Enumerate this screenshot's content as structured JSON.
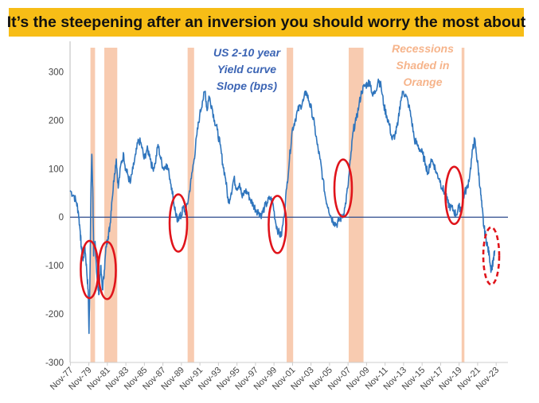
{
  "banner": {
    "title": "It’s the steepening after an inversion you should worry the most about",
    "background": "#f7bd16"
  },
  "chart_data": {
    "type": "line",
    "title": "It’s the steepening after an inversion you should worry the most about",
    "xlabel": "",
    "ylabel": "",
    "ylim": [
      -300,
      350
    ],
    "yticks": [
      -300,
      -200,
      -100,
      0,
      100,
      200,
      300
    ],
    "xticks": [
      "Nov-77",
      "Nov-79",
      "Nov-81",
      "Nov-83",
      "Nov-85",
      "Nov-87",
      "Nov-89",
      "Nov-91",
      "Nov-93",
      "Nov-95",
      "Nov-97",
      "Nov-99",
      "Nov-01",
      "Nov-03",
      "Nov-05",
      "Nov-07",
      "Nov-09",
      "Nov-11",
      "Nov-13",
      "Nov-15",
      "Nov-17",
      "Nov-19",
      "Nov-21",
      "Nov-23"
    ],
    "grid": false,
    "legend": "none",
    "annotations": {
      "series_label": [
        "US 2-10 year",
        "Yield curve",
        "Slope (bps)"
      ],
      "recession_label": [
        "Recessions",
        "Shaded in",
        "Orange"
      ]
    },
    "colors": {
      "line": "#2f75bd",
      "recession": "#f8cbb0",
      "circle": "#e0141b",
      "zero_line": "#2b4a8b",
      "annotation_blue": "#3b64b4",
      "annotation_orange": "#f6b48b"
    },
    "recessions": [
      {
        "start": 1980.0,
        "end": 1980.5
      },
      {
        "start": 1981.5,
        "end": 1982.9
      },
      {
        "start": 1990.5,
        "end": 1991.2
      },
      {
        "start": 2001.2,
        "end": 2001.9
      },
      {
        "start": 2007.9,
        "end": 2009.5
      },
      {
        "start": 2020.1,
        "end": 2020.4
      }
    ],
    "highlight_circles": [
      {
        "x": 1979.9,
        "y": -108,
        "style": "solid"
      },
      {
        "x": 1981.8,
        "y": -110,
        "style": "solid"
      },
      {
        "x": 1989.5,
        "y": -12,
        "style": "solid"
      },
      {
        "x": 2000.2,
        "y": -15,
        "style": "solid"
      },
      {
        "x": 2007.3,
        "y": 60,
        "style": "solid"
      },
      {
        "x": 2019.3,
        "y": 45,
        "style": "solid"
      },
      {
        "x": 2023.3,
        "y": -80,
        "style": "dashed"
      }
    ],
    "series": [
      {
        "points": [
          [
            1977.8,
            55
          ],
          [
            1978.2,
            45
          ],
          [
            1978.5,
            30
          ],
          [
            1978.7,
            10
          ],
          [
            1978.9,
            -30
          ],
          [
            1979.0,
            -60
          ],
          [
            1979.2,
            -90
          ],
          [
            1979.4,
            -60
          ],
          [
            1979.6,
            -110
          ],
          [
            1979.75,
            -150
          ],
          [
            1979.85,
            -240
          ],
          [
            1979.95,
            -120
          ],
          [
            1980.05,
            50
          ],
          [
            1980.15,
            130
          ],
          [
            1980.25,
            60
          ],
          [
            1980.35,
            -80
          ],
          [
            1980.5,
            -50
          ],
          [
            1980.7,
            -120
          ],
          [
            1980.9,
            -160
          ],
          [
            1981.1,
            -100
          ],
          [
            1981.3,
            -150
          ],
          [
            1981.5,
            -110
          ],
          [
            1981.7,
            -60
          ],
          [
            1981.9,
            -40
          ],
          [
            1982.1,
            -20
          ],
          [
            1982.3,
            30
          ],
          [
            1982.6,
            90
          ],
          [
            1982.8,
            120
          ],
          [
            1983.0,
            60
          ],
          [
            1983.3,
            110
          ],
          [
            1983.6,
            130
          ],
          [
            1983.8,
            100
          ],
          [
            1984.0,
            90
          ],
          [
            1984.3,
            70
          ],
          [
            1984.6,
            100
          ],
          [
            1984.9,
            130
          ],
          [
            1985.2,
            160
          ],
          [
            1985.5,
            150
          ],
          [
            1985.8,
            120
          ],
          [
            1986.1,
            140
          ],
          [
            1986.4,
            130
          ],
          [
            1986.7,
            100
          ],
          [
            1987.0,
            110
          ],
          [
            1987.3,
            150
          ],
          [
            1987.6,
            120
          ],
          [
            1987.9,
            100
          ],
          [
            1988.2,
            110
          ],
          [
            1988.5,
            90
          ],
          [
            1988.8,
            60
          ],
          [
            1989.0,
            30
          ],
          [
            1989.2,
            10
          ],
          [
            1989.4,
            -10
          ],
          [
            1989.6,
            5
          ],
          [
            1989.8,
            0
          ],
          [
            1990.0,
            20
          ],
          [
            1990.3,
            10
          ],
          [
            1990.6,
            40
          ],
          [
            1990.9,
            80
          ],
          [
            1991.2,
            120
          ],
          [
            1991.5,
            170
          ],
          [
            1991.8,
            210
          ],
          [
            1992.1,
            240
          ],
          [
            1992.4,
            260
          ],
          [
            1992.6,
            220
          ],
          [
            1992.8,
            250
          ],
          [
            1993.1,
            230
          ],
          [
            1993.4,
            200
          ],
          [
            1993.7,
            180
          ],
          [
            1994.0,
            150
          ],
          [
            1994.3,
            110
          ],
          [
            1994.6,
            80
          ],
          [
            1994.9,
            30
          ],
          [
            1995.2,
            50
          ],
          [
            1995.5,
            80
          ],
          [
            1995.8,
            60
          ],
          [
            1996.1,
            70
          ],
          [
            1996.4,
            40
          ],
          [
            1996.7,
            55
          ],
          [
            1997.0,
            50
          ],
          [
            1997.3,
            35
          ],
          [
            1997.6,
            25
          ],
          [
            1997.9,
            15
          ],
          [
            1998.2,
            10
          ],
          [
            1998.5,
            5
          ],
          [
            1998.8,
            20
          ],
          [
            1999.1,
            30
          ],
          [
            1999.4,
            40
          ],
          [
            1999.7,
            30
          ],
          [
            2000.0,
            -10
          ],
          [
            2000.3,
            -30
          ],
          [
            2000.6,
            -40
          ],
          [
            2000.9,
            0
          ],
          [
            2001.2,
            60
          ],
          [
            2001.5,
            120
          ],
          [
            2001.8,
            180
          ],
          [
            2002.1,
            200
          ],
          [
            2002.4,
            220
          ],
          [
            2002.7,
            230
          ],
          [
            2003.0,
            240
          ],
          [
            2003.3,
            260
          ],
          [
            2003.6,
            240
          ],
          [
            2003.9,
            220
          ],
          [
            2004.2,
            190
          ],
          [
            2004.5,
            150
          ],
          [
            2004.8,
            120
          ],
          [
            2005.1,
            80
          ],
          [
            2005.4,
            40
          ],
          [
            2005.7,
            20
          ],
          [
            2006.0,
            0
          ],
          [
            2006.3,
            -10
          ],
          [
            2006.6,
            -15
          ],
          [
            2006.9,
            -5
          ],
          [
            2007.2,
            0
          ],
          [
            2007.5,
            20
          ],
          [
            2007.8,
            60
          ],
          [
            2008.1,
            120
          ],
          [
            2008.4,
            180
          ],
          [
            2008.7,
            200
          ],
          [
            2009.0,
            230
          ],
          [
            2009.3,
            260
          ],
          [
            2009.6,
            270
          ],
          [
            2009.9,
            275
          ],
          [
            2010.2,
            280
          ],
          [
            2010.5,
            250
          ],
          [
            2010.8,
            260
          ],
          [
            2011.1,
            285
          ],
          [
            2011.4,
            270
          ],
          [
            2011.7,
            230
          ],
          [
            2012.0,
            210
          ],
          [
            2012.3,
            190
          ],
          [
            2012.6,
            160
          ],
          [
            2012.9,
            170
          ],
          [
            2013.2,
            190
          ],
          [
            2013.5,
            240
          ],
          [
            2013.8,
            260
          ],
          [
            2014.1,
            250
          ],
          [
            2014.4,
            230
          ],
          [
            2014.7,
            200
          ],
          [
            2015.0,
            160
          ],
          [
            2015.3,
            150
          ],
          [
            2015.6,
            140
          ],
          [
            2015.9,
            130
          ],
          [
            2016.2,
            110
          ],
          [
            2016.5,
            90
          ],
          [
            2016.8,
            120
          ],
          [
            2017.1,
            110
          ],
          [
            2017.4,
            90
          ],
          [
            2017.7,
            80
          ],
          [
            2018.0,
            60
          ],
          [
            2018.3,
            50
          ],
          [
            2018.6,
            30
          ],
          [
            2018.9,
            20
          ],
          [
            2019.2,
            15
          ],
          [
            2019.5,
            5
          ],
          [
            2019.8,
            20
          ],
          [
            2020.1,
            20
          ],
          [
            2020.4,
            50
          ],
          [
            2020.7,
            60
          ],
          [
            2021.0,
            90
          ],
          [
            2021.3,
            140
          ],
          [
            2021.5,
            160
          ],
          [
            2021.7,
            130
          ],
          [
            2021.9,
            100
          ],
          [
            2022.1,
            60
          ],
          [
            2022.3,
            20
          ],
          [
            2022.5,
            -20
          ],
          [
            2022.7,
            -40
          ],
          [
            2022.9,
            -60
          ],
          [
            2023.1,
            -80
          ],
          [
            2023.3,
            -110
          ],
          [
            2023.5,
            -90
          ],
          [
            2023.7,
            -70
          ]
        ]
      }
    ]
  }
}
